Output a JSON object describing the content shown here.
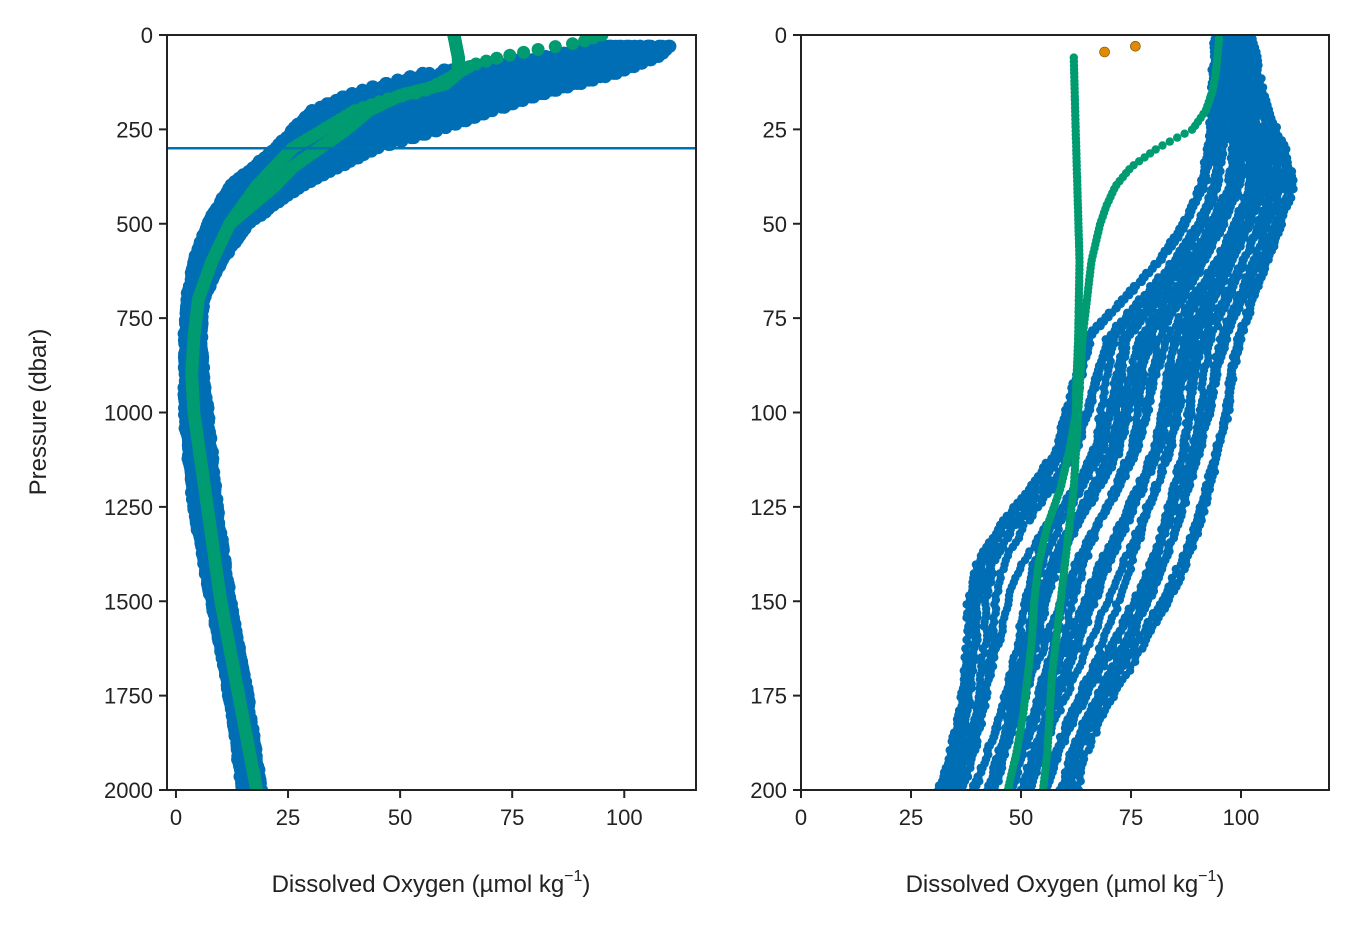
{
  "colors": {
    "blue": "#006eb4",
    "green": "#009b70",
    "orange": "#e08a00",
    "hline": "#0072b2",
    "axis": "#222222"
  },
  "chart_data": [
    {
      "type": "scatter",
      "title": "",
      "xlabel": "Dissolved Oxygen (µmol kg",
      "xlabel_sup": "−1",
      "xlabel_end": ")",
      "ylabel": "Pressure (dbar)",
      "xlim": [
        -2,
        116
      ],
      "ylim": [
        2000,
        0
      ],
      "y_inverted": true,
      "x_ticks": [
        0,
        25,
        50,
        75,
        100
      ],
      "x_tick_labels": [
        "0",
        "25",
        "50",
        "75",
        "100"
      ],
      "y_ticks": [
        0,
        250,
        500,
        750,
        1000,
        1250,
        1500,
        1750,
        2000
      ],
      "y_tick_labels": [
        "0",
        "250",
        "500",
        "750",
        "1000",
        "1250",
        "1500",
        "1750",
        "2000"
      ],
      "hline": 300,
      "series": [
        {
          "color": "blue",
          "kind": "envelope",
          "pressure": [
            30,
            60,
            100,
            150,
            200,
            250,
            300,
            400,
            500,
            600,
            700,
            800,
            900,
            1000,
            1250,
            1500,
            1750,
            2000
          ],
          "o2_min": [
            93,
            80,
            55,
            40,
            30,
            26,
            22,
            12,
            7,
            4,
            2.5,
            2,
            2,
            2,
            4,
            8,
            12,
            15
          ],
          "o2_max": [
            111,
            108,
            100,
            85,
            72,
            60,
            45,
            28,
            16,
            10,
            6,
            5.5,
            6,
            7,
            9,
            12,
            16,
            19
          ]
        },
        {
          "color": "green",
          "kind": "profile",
          "pressure": [
            0,
            20,
            40,
            60,
            80,
            100,
            120,
            150,
            170,
            200,
            250,
            300,
            400,
            500,
            600,
            700,
            800,
            900,
            1000,
            1250,
            1500,
            1750,
            2000
          ],
          "o2": [
            95,
            90,
            80,
            72,
            66,
            63,
            60,
            55,
            47,
            40,
            33,
            26,
            18,
            12,
            8,
            5,
            4,
            3.5,
            4,
            7,
            10,
            14,
            18
          ]
        },
        {
          "color": "green",
          "kind": "profile",
          "pressure": [
            0,
            30,
            60,
            100,
            130,
            160,
            200,
            250,
            300,
            350,
            400,
            500
          ],
          "o2": [
            62,
            62.5,
            63,
            63,
            60,
            50,
            43,
            38,
            32,
            26,
            22,
            12
          ]
        }
      ]
    },
    {
      "type": "scatter",
      "title": "",
      "xlabel": "Dissolved Oxygen (µmol kg",
      "xlabel_sup": "−1",
      "xlabel_end": ")",
      "ylabel": "",
      "xlim": [
        0,
        120
      ],
      "ylim": [
        200,
        0
      ],
      "y_inverted": true,
      "x_ticks": [
        0,
        25,
        50,
        75,
        100
      ],
      "x_tick_labels": [
        "0",
        "25",
        "50",
        "75",
        "100"
      ],
      "y_ticks": [
        0,
        25,
        50,
        75,
        100,
        125,
        150,
        175,
        200
      ],
      "y_tick_labels": [
        "0",
        "25",
        "50",
        "75",
        "100",
        "125",
        "150",
        "175",
        "200"
      ],
      "series": [
        {
          "color": "blue",
          "kind": "envelope",
          "pressure": [
            1,
            10,
            20,
            30,
            40,
            50,
            60,
            70,
            80,
            90,
            100,
            110,
            120,
            130,
            140,
            150,
            160,
            170,
            180,
            190,
            200
          ],
          "o2_min": [
            94,
            93.5,
            93,
            92,
            90,
            86,
            80,
            72,
            64,
            62,
            60,
            58,
            52,
            45,
            40,
            38,
            38,
            37,
            36,
            34,
            31
          ],
          "o2_max": [
            103,
            104,
            106,
            110,
            112,
            109,
            106,
            103,
            100,
            98,
            97,
            95,
            93,
            91,
            88,
            84,
            79,
            74,
            69,
            65,
            63
          ]
        },
        {
          "color": "green",
          "kind": "profile",
          "pressure": [
            1,
            5,
            10,
            15,
            20,
            25,
            30,
            35,
            40,
            45,
            50,
            60,
            70,
            80,
            90,
            100,
            110,
            120,
            130,
            140,
            150,
            160,
            170,
            180,
            190,
            200
          ],
          "o2": [
            95,
            94.7,
            94.3,
            93.5,
            92,
            89,
            81,
            75,
            71.5,
            69.5,
            68,
            66,
            65,
            64,
            63.5,
            63,
            62.5,
            62,
            61,
            60,
            59,
            58,
            57,
            56.5,
            56,
            55
          ]
        },
        {
          "color": "green",
          "kind": "profile",
          "pressure": [
            6,
            20,
            40,
            60,
            80,
            95,
            100,
            110,
            120,
            130,
            140,
            150,
            160,
            170,
            180,
            190,
            200
          ],
          "o2": [
            62,
            62.3,
            62.8,
            63.3,
            63,
            62.5,
            62.5,
            61,
            59,
            56,
            54,
            53,
            52.5,
            51.5,
            50.5,
            49,
            47
          ]
        },
        {
          "color": "orange",
          "kind": "points",
          "pressure": [
            4.5,
            3
          ],
          "o2": [
            69,
            76
          ]
        }
      ]
    }
  ]
}
